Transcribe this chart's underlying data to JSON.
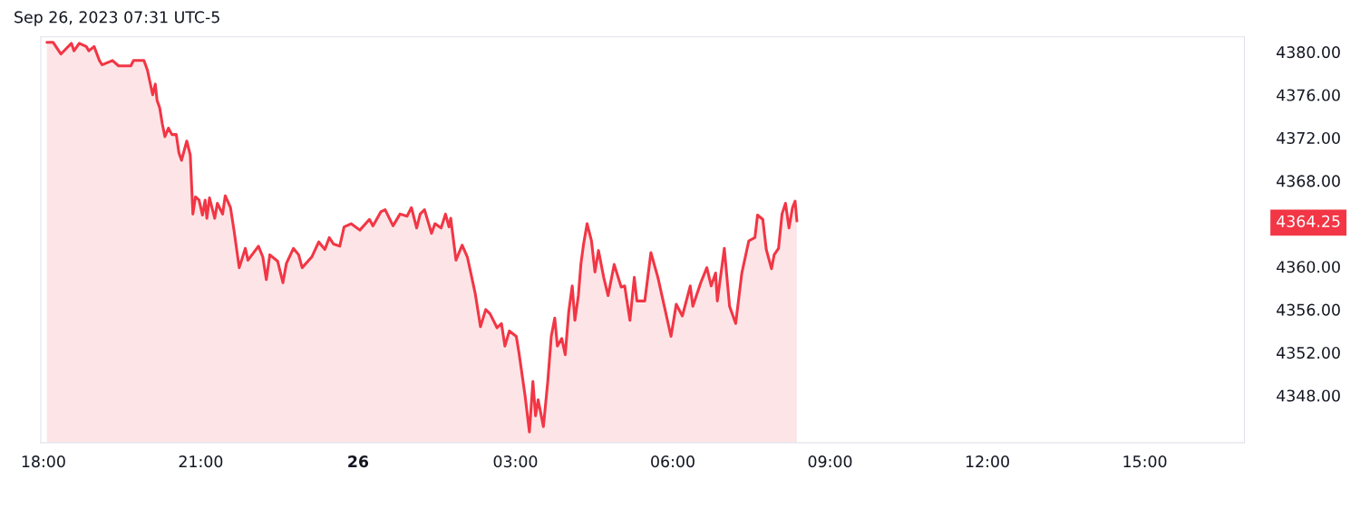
{
  "chart_data": {
    "type": "area",
    "title": "Sep 26, 2023 07:31 UTC-5",
    "x": [
      "2023-09-25T18:04",
      "2023-09-25T18:11",
      "2023-09-25T18:20",
      "2023-09-25T18:26",
      "2023-09-25T18:32",
      "2023-09-25T18:35",
      "2023-09-25T18:41",
      "2023-09-25T18:49",
      "2023-09-25T18:52",
      "2023-09-25T18:58",
      "2023-09-25T19:04",
      "2023-09-25T19:07",
      "2023-09-25T19:19",
      "2023-09-25T19:26",
      "2023-09-25T19:40",
      "2023-09-25T19:43",
      "2023-09-25T19:55",
      "2023-09-25T19:59",
      "2023-09-25T20:05",
      "2023-09-25T20:08",
      "2023-09-25T20:10",
      "2023-09-25T20:13",
      "2023-09-25T20:16",
      "2023-09-25T20:19",
      "2023-09-25T20:23",
      "2023-09-25T20:27",
      "2023-09-25T20:32",
      "2023-09-25T20:35",
      "2023-09-25T20:38",
      "2023-09-25T20:44",
      "2023-09-25T20:48",
      "2023-09-25T20:51",
      "2023-09-25T20:54",
      "2023-09-25T20:58",
      "2023-09-25T21:02",
      "2023-09-25T21:05",
      "2023-09-25T21:07",
      "2023-09-25T21:10",
      "2023-09-25T21:16",
      "2023-09-25T21:19",
      "2023-09-25T21:25",
      "2023-09-25T21:28",
      "2023-09-25T21:34",
      "2023-09-25T21:38",
      "2023-09-25T21:44",
      "2023-09-25T21:51",
      "2023-09-25T21:54",
      "2023-09-25T22:06",
      "2023-09-25T22:11",
      "2023-09-25T22:15",
      "2023-09-25T22:19",
      "2023-09-25T22:28",
      "2023-09-25T22:34",
      "2023-09-25T22:38",
      "2023-09-25T22:46",
      "2023-09-25T22:52",
      "2023-09-25T22:56",
      "2023-09-25T23:07",
      "2023-09-25T23:15",
      "2023-09-25T23:22",
      "2023-09-25T23:27",
      "2023-09-25T23:32",
      "2023-09-25T23:39",
      "2023-09-25T23:44",
      "2023-09-25T23:52",
      "2023-09-26T00:02",
      "2023-09-26T00:13",
      "2023-09-26T00:17",
      "2023-09-26T00:26",
      "2023-09-26T00:31",
      "2023-09-26T00:40",
      "2023-09-26T00:48",
      "2023-09-26T00:56",
      "2023-09-26T01:01",
      "2023-09-26T01:07",
      "2023-09-26T01:11",
      "2023-09-26T01:16",
      "2023-09-26T01:24",
      "2023-09-26T01:28",
      "2023-09-26T01:35",
      "2023-09-26T01:40",
      "2023-09-26T01:44",
      "2023-09-26T01:46",
      "2023-09-26T01:52",
      "2023-09-26T01:59",
      "2023-09-26T02:05",
      "2023-09-26T02:14",
      "2023-09-26T02:20",
      "2023-09-26T02:26",
      "2023-09-26T02:31",
      "2023-09-26T02:39",
      "2023-09-26T02:44",
      "2023-09-26T02:48",
      "2023-09-26T02:53",
      "2023-09-26T03:01",
      "2023-09-26T03:04",
      "2023-09-26T03:11",
      "2023-09-26T03:16",
      "2023-09-26T03:20",
      "2023-09-26T03:23",
      "2023-09-26T03:26",
      "2023-09-26T03:32",
      "2023-09-26T03:37",
      "2023-09-26T03:41",
      "2023-09-26T03:45",
      "2023-09-26T03:48",
      "2023-09-26T03:53",
      "2023-09-26T03:57",
      "2023-09-26T04:01",
      "2023-09-26T04:05",
      "2023-09-26T04:08",
      "2023-09-26T04:12",
      "2023-09-26T04:15",
      "2023-09-26T04:18",
      "2023-09-26T04:22",
      "2023-09-26T04:27",
      "2023-09-26T04:31",
      "2023-09-26T04:35",
      "2023-09-26T04:41",
      "2023-09-26T04:46",
      "2023-09-26T04:53",
      "2023-09-26T05:01",
      "2023-09-26T05:05",
      "2023-09-26T05:11",
      "2023-09-26T05:16",
      "2023-09-26T05:19",
      "2023-09-26T05:28",
      "2023-09-26T05:35",
      "2023-09-26T05:43",
      "2023-09-26T05:49",
      "2023-09-26T05:58",
      "2023-09-26T06:04",
      "2023-09-26T06:11",
      "2023-09-26T06:20",
      "2023-09-26T06:23",
      "2023-09-26T06:32",
      "2023-09-26T06:39",
      "2023-09-26T06:44",
      "2023-09-26T06:49",
      "2023-09-26T06:51",
      "2023-09-26T06:59",
      "2023-09-26T07:05",
      "2023-09-26T07:12",
      "2023-09-26T07:19",
      "2023-09-26T07:27",
      "2023-09-26T07:34",
      "2023-09-26T07:37",
      "2023-09-26T07:43",
      "2023-09-26T07:47",
      "2023-09-26T07:53",
      "2023-09-26T07:56",
      "2023-09-26T08:01",
      "2023-09-26T08:05",
      "2023-09-26T08:09",
      "2023-09-26T08:13",
      "2023-09-26T08:17",
      "2023-09-26T08:20",
      "2023-09-26T08:22"
    ],
    "series": [
      {
        "color": "#f23645",
        "values": [
          4380.9,
          4380.9,
          4379.8,
          4380.3,
          4380.8,
          4380.1,
          4380.8,
          4380.5,
          4380.1,
          4380.5,
          4379.2,
          4378.8,
          4379.2,
          4378.7,
          4378.7,
          4379.2,
          4379.2,
          4378.3,
          4376.0,
          4377.0,
          4375.5,
          4374.8,
          4373.3,
          4372.1,
          4372.9,
          4372.3,
          4372.3,
          4370.6,
          4369.9,
          4371.7,
          4370.4,
          4364.9,
          4366.5,
          4366.2,
          4364.8,
          4366.2,
          4364.5,
          4366.4,
          4364.5,
          4365.9,
          4364.9,
          4366.6,
          4365.5,
          4363.4,
          4359.9,
          4361.7,
          4360.6,
          4361.9,
          4360.9,
          4358.8,
          4361.1,
          4360.5,
          4358.5,
          4360.3,
          4361.7,
          4361.1,
          4359.9,
          4360.9,
          4362.3,
          4361.6,
          4362.7,
          4362.1,
          4361.9,
          4363.7,
          4364.0,
          4363.4,
          4364.4,
          4363.8,
          4365.1,
          4365.3,
          4363.8,
          4364.9,
          4364.7,
          4365.5,
          4363.6,
          4364.9,
          4365.3,
          4363.1,
          4364.0,
          4363.6,
          4364.9,
          4363.7,
          4364.5,
          4360.6,
          4362.0,
          4360.9,
          4357.5,
          4354.4,
          4356.0,
          4355.6,
          4354.3,
          4354.7,
          4352.6,
          4354.0,
          4353.5,
          4352.0,
          4348.0,
          4344.6,
          4349.3,
          4346.1,
          4347.6,
          4345.1,
          4349.3,
          4353.5,
          4355.2,
          4352.6,
          4353.3,
          4351.8,
          4355.8,
          4358.2,
          4355.0,
          4357.3,
          4360.3,
          4362.1,
          4364.0,
          4362.4,
          4359.5,
          4361.5,
          4359.0,
          4357.3,
          4360.2,
          4358.1,
          4358.2,
          4355.0,
          4359.0,
          4356.8,
          4356.8,
          4361.3,
          4359.0,
          4356.8,
          4353.5,
          4356.5,
          4355.4,
          4358.2,
          4356.3,
          4358.5,
          4359.9,
          4358.2,
          4359.4,
          4356.8,
          4361.7,
          4356.3,
          4354.7,
          4359.4,
          4362.4,
          4362.7,
          4364.8,
          4364.4,
          4361.6,
          4359.8,
          4361.1,
          4361.7,
          4364.9,
          4365.9,
          4363.6,
          4365.5,
          4366.1,
          4364.25
        ]
      }
    ],
    "xlim": [
      "2023-09-25T17:57",
      "2023-09-26T16:54"
    ],
    "xticks": [
      {
        "value": "2023-09-25T18:00",
        "label": "18:00"
      },
      {
        "value": "2023-09-25T21:00",
        "label": "21:00"
      },
      {
        "value": "2023-09-26T00:00",
        "label": "26"
      },
      {
        "value": "2023-09-26T03:00",
        "label": "03:00"
      },
      {
        "value": "2023-09-26T06:00",
        "label": "06:00"
      },
      {
        "value": "2023-09-26T09:00",
        "label": "09:00"
      },
      {
        "value": "2023-09-26T12:00",
        "label": "12:00"
      },
      {
        "value": "2023-09-26T15:00",
        "label": "15:00"
      }
    ],
    "ylim": [
      4343.6,
      4381.4
    ],
    "yticks": [
      {
        "value": 4348,
        "label": "4348.00"
      },
      {
        "value": 4352,
        "label": "4352.00"
      },
      {
        "value": 4356,
        "label": "4356.00"
      },
      {
        "value": 4360,
        "label": "4360.00"
      },
      {
        "value": 4364.25,
        "label": "4364.25"
      },
      {
        "value": 4368,
        "label": "4368.00"
      },
      {
        "value": 4372,
        "label": "4372.00"
      },
      {
        "value": 4376,
        "label": "4376.00"
      },
      {
        "value": 4380,
        "label": "4380.00"
      }
    ],
    "grid": false,
    "legend": false
  }
}
